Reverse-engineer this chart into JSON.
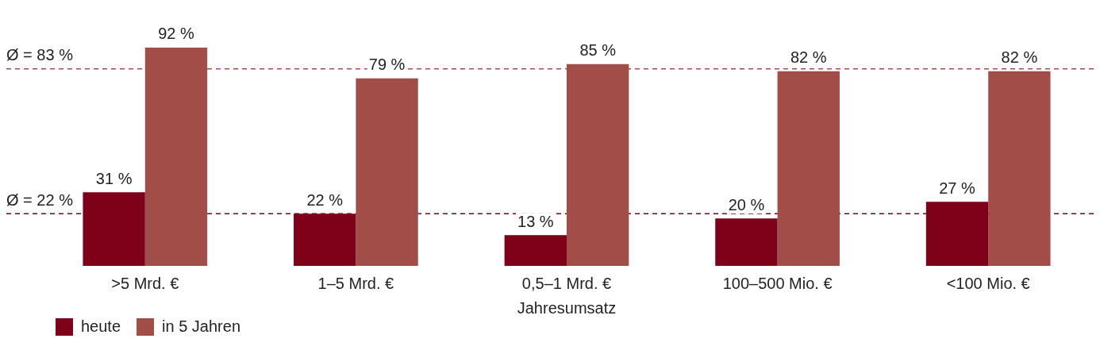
{
  "chart_data": {
    "type": "bar",
    "xlabel": "Jahresumsatz",
    "categories": [
      ">5 Mrd. €",
      "1–5 Mrd. €",
      "0,5–1 Mrd. €",
      "100–500 Mio. €",
      "<100 Mio. €"
    ],
    "series": [
      {
        "name": "heute",
        "color": "#7f0019",
        "values": [
          31,
          22,
          13,
          20,
          27
        ],
        "value_labels": [
          "31 %",
          "22 %",
          "13 %",
          "20 %",
          "27 %"
        ]
      },
      {
        "name": "in 5 Jahren",
        "color": "#a24d48",
        "values": [
          92,
          79,
          85,
          82,
          82
        ],
        "value_labels": [
          "92 %",
          "79 %",
          "85 %",
          "82 %",
          "82 %"
        ]
      }
    ],
    "tick_labels": "x",
    "grid": false,
    "legend": "bottom left",
    "ref_lines": [
      {
        "axis": "y",
        "value": 83,
        "label": "Ø = 83 %",
        "color": "#a24d48",
        "line_style": "dashed"
      },
      {
        "axis": "y",
        "value": 22,
        "label": "Ø = 22 %",
        "color": "#7f0019",
        "line_style": "dashed"
      }
    ]
  }
}
